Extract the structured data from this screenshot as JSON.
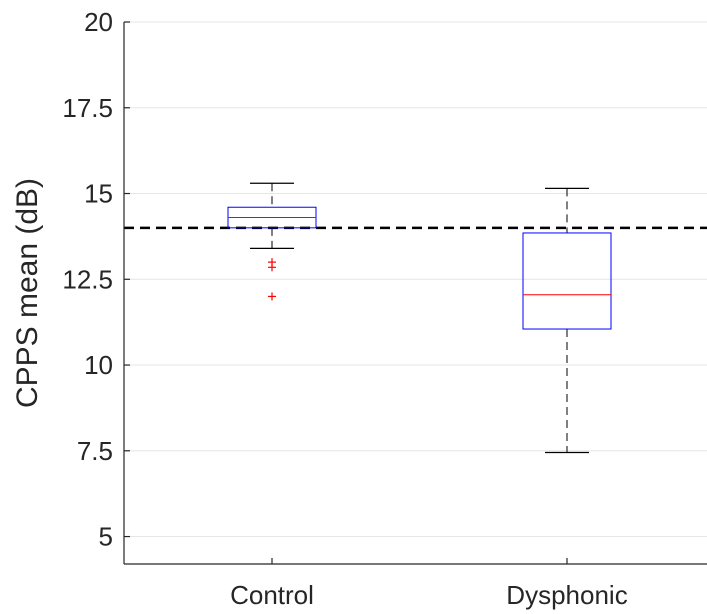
{
  "chart_data": {
    "type": "box",
    "title": "",
    "xlabel": "",
    "ylabel": "CPPS mean (dB)",
    "ylim": [
      4.2,
      20
    ],
    "yticks": [
      5,
      7.5,
      10,
      12.5,
      15,
      17.5,
      20
    ],
    "ytick_labels": [
      "5",
      "7.5",
      "10",
      "12.5",
      "15",
      "17.5",
      "20"
    ],
    "grid": "horizontal",
    "categories": [
      "Control",
      "Dysphonic"
    ],
    "boxes": [
      {
        "category": "Control",
        "whisker_low": 13.4,
        "q1": 14.0,
        "median": 14.3,
        "q3": 14.6,
        "whisker_high": 15.3,
        "outliers": [
          13.0,
          12.85,
          12.0
        ]
      },
      {
        "category": "Dysphonic",
        "whisker_low": 7.45,
        "q1": 11.05,
        "median": 12.05,
        "q3": 13.85,
        "whisker_high": 15.15,
        "outliers": []
      }
    ],
    "reference_line": {
      "y": 14,
      "style": "dashed",
      "color": "#000000"
    },
    "colors": {
      "box": "#0000ff",
      "median": "#ff0000",
      "outlier": "#ff0000",
      "whisker": "#000000",
      "grid": "#e6e6e6"
    }
  }
}
